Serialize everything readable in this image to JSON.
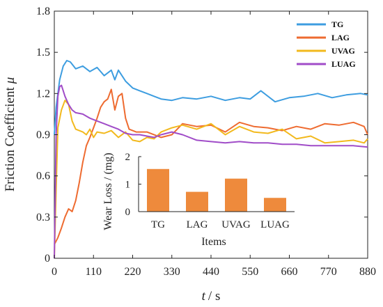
{
  "chart_data": [
    {
      "type": "line",
      "xlabel_var": "t",
      "xlabel_unit": "/ s",
      "ylabel_text": "Friction Coefficient",
      "ylabel_symbol": "μ",
      "xlim": [
        0,
        880
      ],
      "ylim": [
        0,
        1.8
      ],
      "x_ticks": [
        0,
        110,
        220,
        330,
        440,
        550,
        660,
        770,
        880
      ],
      "y_ticks": [
        "0",
        "0.3",
        "0.6",
        "0.9",
        "1.2",
        "1.5",
        "1.8"
      ],
      "legend_position": "top-right",
      "series": [
        {
          "name": "TG",
          "color": "#3d9de0",
          "x": [
            0,
            5,
            15,
            25,
            35,
            45,
            60,
            80,
            100,
            120,
            140,
            160,
            170,
            180,
            200,
            220,
            240,
            260,
            280,
            300,
            330,
            360,
            400,
            440,
            480,
            520,
            550,
            580,
            620,
            660,
            700,
            740,
            780,
            820,
            860,
            880
          ],
          "y": [
            0.9,
            1.1,
            1.3,
            1.4,
            1.44,
            1.43,
            1.38,
            1.4,
            1.36,
            1.39,
            1.33,
            1.37,
            1.3,
            1.37,
            1.29,
            1.24,
            1.22,
            1.2,
            1.18,
            1.16,
            1.15,
            1.17,
            1.16,
            1.18,
            1.15,
            1.17,
            1.16,
            1.22,
            1.14,
            1.17,
            1.18,
            1.2,
            1.17,
            1.19,
            1.2,
            1.19
          ]
        },
        {
          "name": "LAG",
          "color": "#ee6b30",
          "x": [
            0,
            10,
            20,
            30,
            40,
            50,
            60,
            70,
            80,
            90,
            100,
            110,
            120,
            130,
            140,
            150,
            160,
            170,
            180,
            190,
            200,
            210,
            230,
            260,
            300,
            330,
            360,
            400,
            440,
            480,
            520,
            560,
            600,
            640,
            680,
            720,
            760,
            800,
            840,
            870,
            880
          ],
          "y": [
            0.1,
            0.15,
            0.22,
            0.3,
            0.36,
            0.34,
            0.42,
            0.55,
            0.7,
            0.82,
            0.88,
            0.95,
            1.02,
            1.1,
            1.14,
            1.16,
            1.23,
            1.08,
            1.18,
            1.2,
            1.02,
            0.94,
            0.92,
            0.92,
            0.88,
            0.9,
            0.98,
            0.96,
            0.97,
            0.92,
            0.99,
            0.96,
            0.95,
            0.93,
            0.96,
            0.94,
            0.98,
            0.97,
            0.99,
            0.96,
            0.9
          ]
        },
        {
          "name": "UVAG",
          "color": "#f2b91d",
          "x": [
            0,
            5,
            10,
            20,
            30,
            40,
            50,
            60,
            70,
            80,
            90,
            100,
            110,
            120,
            140,
            160,
            180,
            200,
            220,
            240,
            260,
            280,
            300,
            330,
            360,
            400,
            440,
            480,
            520,
            560,
            600,
            640,
            680,
            720,
            760,
            800,
            840,
            870,
            880
          ],
          "y": [
            0.0,
            0.5,
            0.95,
            1.08,
            1.15,
            1.12,
            1.0,
            0.94,
            0.93,
            0.92,
            0.9,
            0.94,
            0.88,
            0.92,
            0.91,
            0.93,
            0.88,
            0.92,
            0.86,
            0.85,
            0.88,
            0.87,
            0.92,
            0.95,
            0.97,
            0.94,
            0.98,
            0.9,
            0.96,
            0.92,
            0.91,
            0.94,
            0.87,
            0.89,
            0.84,
            0.85,
            0.86,
            0.84,
            0.87
          ]
        },
        {
          "name": "LUAG",
          "color": "#a04cc8",
          "x": [
            0,
            5,
            10,
            15,
            20,
            25,
            30,
            40,
            50,
            60,
            80,
            100,
            120,
            140,
            160,
            180,
            200,
            220,
            240,
            260,
            280,
            300,
            330,
            360,
            400,
            440,
            480,
            520,
            560,
            600,
            640,
            680,
            720,
            760,
            800,
            840,
            880
          ],
          "y": [
            0.0,
            0.9,
            1.18,
            1.25,
            1.26,
            1.22,
            1.18,
            1.12,
            1.08,
            1.06,
            1.05,
            1.02,
            1.0,
            0.98,
            0.96,
            0.94,
            0.91,
            0.9,
            0.9,
            0.89,
            0.88,
            0.9,
            0.92,
            0.9,
            0.86,
            0.85,
            0.84,
            0.85,
            0.84,
            0.84,
            0.83,
            0.83,
            0.82,
            0.82,
            0.82,
            0.82,
            0.81
          ]
        }
      ]
    },
    {
      "type": "bar",
      "xlabel": "Items",
      "ylabel": "Wear Loss / (mg)",
      "categories": [
        "TG",
        "LAG",
        "UVAG",
        "LUAG"
      ],
      "values": [
        1.55,
        0.72,
        1.2,
        0.5
      ],
      "ylim": [
        0,
        2
      ],
      "y_ticks": [
        "0",
        "1",
        "2"
      ],
      "bar_color": "#ee8a3c"
    }
  ]
}
